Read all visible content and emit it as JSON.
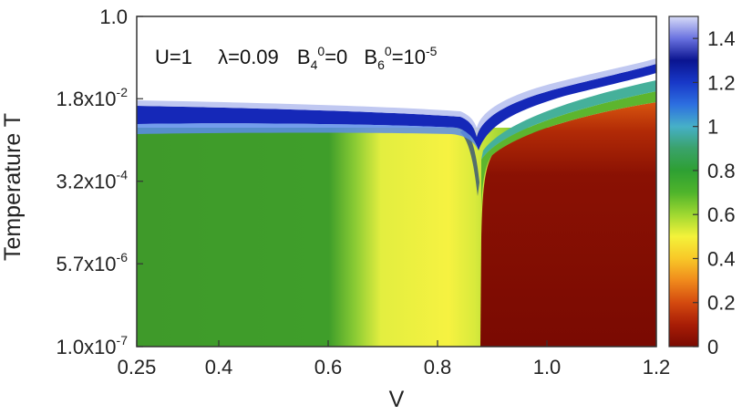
{
  "chart_data": {
    "type": "heatmap",
    "xlabel": "V",
    "ylabel": "Temperature T",
    "xlim": [
      0.25,
      1.2
    ],
    "ylim_log10": [
      -7,
      0
    ],
    "x_ticks": [
      {
        "value": 0.25,
        "label": "0.25"
      },
      {
        "value": 0.4,
        "label": "0.4"
      },
      {
        "value": 0.6,
        "label": "0.6"
      },
      {
        "value": 0.8,
        "label": "0.8"
      },
      {
        "value": 1.0,
        "label": "1.0"
      },
      {
        "value": 1.2,
        "label": "1.2"
      }
    ],
    "y_ticks": [
      {
        "value": 1.0,
        "label": "1.0"
      },
      {
        "value": 0.018,
        "label": "1.8x10",
        "exp": "-2"
      },
      {
        "value": 0.00032,
        "label": "3.2x10",
        "exp": "-4"
      },
      {
        "value": 5.7e-06,
        "label": "5.7x10",
        "exp": "-6"
      },
      {
        "value": 1e-07,
        "label": "1.0x10",
        "exp": "-7"
      }
    ],
    "annotation": {
      "u": "U=1",
      "lambda": "λ=0.09",
      "b4_base": "B",
      "b4_sub": "4",
      "b4_sup": "0",
      "b4_val": "=0",
      "b6_base": "B",
      "b6_sub": "6",
      "b6_sup": "0",
      "b6_val": "=10",
      "b6_exp": "-5"
    },
    "colorbar": {
      "range": [
        0,
        1.5
      ],
      "ticks": [
        {
          "value": 0,
          "label": "0"
        },
        {
          "value": 0.2,
          "label": "0.2"
        },
        {
          "value": 0.4,
          "label": "0.4"
        },
        {
          "value": 0.6,
          "label": "0.6"
        },
        {
          "value": 0.8,
          "label": "0.8"
        },
        {
          "value": 1.0,
          "label": "1"
        },
        {
          "value": 1.2,
          "label": "1.2"
        },
        {
          "value": 1.4,
          "label": "1.4"
        }
      ],
      "colors": [
        "#7a0a02",
        "#a81d06",
        "#d44a0f",
        "#f08a1c",
        "#f8c828",
        "#f4f23a",
        "#9fd831",
        "#4fb42b",
        "#2ea033",
        "#3aa26a",
        "#46b0c8",
        "#2d6fe0",
        "#1838c8",
        "#0a1490",
        "#6a72e0",
        "#d8dcf8"
      ]
    },
    "regions": [
      {
        "name": "low-T green region",
        "x_range": [
          0.25,
          0.6
        ],
        "value": 0.65
      },
      {
        "name": "low-T yellow region",
        "x_range": [
          0.62,
          0.87
        ],
        "value": 0.35
      },
      {
        "name": "low-T red region",
        "x_range": [
          0.88,
          1.2
        ],
        "value": 0.0
      },
      {
        "name": "high-T blue crossover band",
        "value": 1.3
      }
    ]
  }
}
